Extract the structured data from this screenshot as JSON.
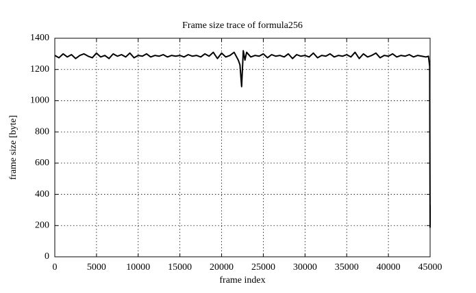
{
  "chart_data": {
    "type": "line",
    "title": "Frame size trace of formula256",
    "xlabel": "frame index",
    "ylabel": "frame size [byte]",
    "xlim": [
      0,
      45000
    ],
    "ylim": [
      0,
      1400
    ],
    "xticks": [
      0,
      5000,
      10000,
      15000,
      20000,
      25000,
      30000,
      35000,
      40000,
      45000
    ],
    "yticks": [
      0,
      200,
      400,
      600,
      800,
      1000,
      1200,
      1400
    ],
    "grid": true,
    "series": [
      {
        "color": "#000000",
        "x": [
          0,
          500,
          1000,
          1500,
          2000,
          2500,
          3000,
          3500,
          4000,
          4500,
          5000,
          5500,
          6000,
          6500,
          7000,
          7500,
          8000,
          8500,
          9000,
          9500,
          10000,
          10500,
          11000,
          11500,
          12000,
          12500,
          13000,
          13500,
          14000,
          14500,
          15000,
          15500,
          16000,
          16500,
          17000,
          17500,
          18000,
          18500,
          19000,
          19500,
          20000,
          20500,
          21000,
          21500,
          22000,
          22200,
          22400,
          22600,
          22800,
          23000,
          23500,
          24000,
          24500,
          25000,
          25500,
          26000,
          26500,
          27000,
          27500,
          28000,
          28500,
          29000,
          29500,
          30000,
          30500,
          31000,
          31500,
          32000,
          32500,
          33000,
          33500,
          34000,
          34500,
          35000,
          35500,
          36000,
          36500,
          37000,
          37500,
          38000,
          38500,
          39000,
          39500,
          40000,
          40500,
          41000,
          41500,
          42000,
          42500,
          43000,
          43500,
          44000,
          44500,
          44800,
          44950,
          44980,
          45000,
          45000
        ],
        "values": [
          1290,
          1275,
          1300,
          1280,
          1295,
          1270,
          1290,
          1300,
          1285,
          1275,
          1305,
          1280,
          1290,
          1270,
          1300,
          1285,
          1295,
          1280,
          1305,
          1275,
          1290,
          1285,
          1300,
          1280,
          1290,
          1285,
          1295,
          1280,
          1290,
          1285,
          1290,
          1280,
          1295,
          1285,
          1290,
          1280,
          1300,
          1285,
          1310,
          1270,
          1305,
          1280,
          1290,
          1310,
          1260,
          1230,
          1090,
          1320,
          1260,
          1310,
          1280,
          1290,
          1285,
          1300,
          1275,
          1295,
          1285,
          1290,
          1280,
          1300,
          1270,
          1295,
          1285,
          1290,
          1280,
          1305,
          1275,
          1290,
          1285,
          1300,
          1280,
          1290,
          1285,
          1295,
          1280,
          1310,
          1270,
          1300,
          1280,
          1290,
          1305,
          1275,
          1290,
          1285,
          1300,
          1280,
          1290,
          1285,
          1295,
          1280,
          1290,
          1285,
          1280,
          1285,
          1220,
          550,
          190,
          330
        ]
      }
    ]
  }
}
